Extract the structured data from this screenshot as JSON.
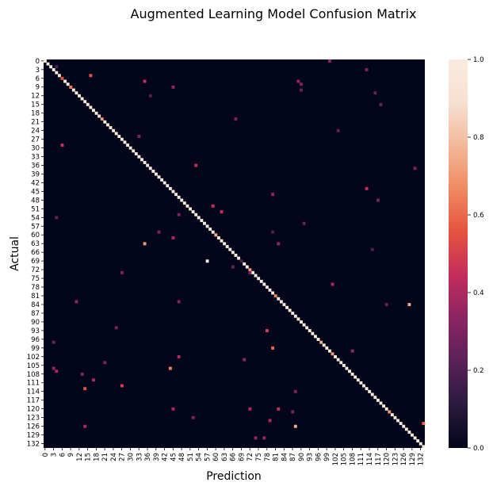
{
  "chart_data": {
    "type": "heatmap",
    "title": "Augmented Learning Model Confusion Matrix",
    "xlabel": "Prediction",
    "ylabel": "Actual",
    "n_classes": 134,
    "tick_step": 3,
    "tick_labels": [
      "0",
      "3",
      "6",
      "9",
      "12",
      "15",
      "18",
      "21",
      "24",
      "27",
      "30",
      "33",
      "36",
      "39",
      "42",
      "45",
      "48",
      "51",
      "54",
      "57",
      "60",
      "63",
      "66",
      "69",
      "72",
      "75",
      "78",
      "81",
      "84",
      "87",
      "90",
      "93",
      "96",
      "99",
      "102",
      "105",
      "108",
      "111",
      "114",
      "117",
      "120",
      "123",
      "126",
      "129",
      "132"
    ],
    "colorbar": {
      "range": [
        0,
        1
      ],
      "ticks": [
        "0.0",
        "0.2",
        "0.4",
        "0.6",
        "0.8",
        "1.0"
      ],
      "colormap": "rocket",
      "stops": [
        "#03051a",
        "#2a1a3e",
        "#5a2157",
        "#8c2463",
        "#c32d5b",
        "#e5533f",
        "#ef8a61",
        "#f3b899",
        "#f7e0d2",
        "#faebdd"
      ]
    },
    "diagonal_dominant": true,
    "diagonal_exceptions": [
      {
        "actual": 6,
        "pred": 6,
        "value": 0.55
      },
      {
        "actual": 9,
        "pred": 9,
        "value": 0.65
      },
      {
        "actual": 20,
        "pred": 20,
        "value": 0.7
      },
      {
        "actual": 60,
        "pred": 60,
        "value": 0.75
      },
      {
        "actual": 69,
        "pred": 69,
        "value": 0.2
      },
      {
        "actual": 72,
        "pred": 72,
        "value": 0.7
      },
      {
        "actual": 81,
        "pred": 81,
        "value": 0.65
      },
      {
        "actual": 97,
        "pred": 97,
        "value": 0.75
      },
      {
        "actual": 101,
        "pred": 101,
        "value": 0.7
      },
      {
        "actual": 121,
        "pred": 121,
        "value": 0.7
      }
    ],
    "off_diagonal": [
      {
        "actual": 0,
        "pred": 100,
        "value": 0.35
      },
      {
        "actual": 2,
        "pred": 4,
        "value": 0.2
      },
      {
        "actual": 3,
        "pred": 113,
        "value": 0.3
      },
      {
        "actual": 5,
        "pred": 16,
        "value": 0.55
      },
      {
        "actual": 7,
        "pred": 35,
        "value": 0.45
      },
      {
        "actual": 7,
        "pred": 89,
        "value": 0.35
      },
      {
        "actual": 8,
        "pred": 90,
        "value": 0.3
      },
      {
        "actual": 9,
        "pred": 45,
        "value": 0.35
      },
      {
        "actual": 10,
        "pred": 90,
        "value": 0.25
      },
      {
        "actual": 11,
        "pred": 116,
        "value": 0.25
      },
      {
        "actual": 12,
        "pred": 37,
        "value": 0.2
      },
      {
        "actual": 15,
        "pred": 118,
        "value": 0.25
      },
      {
        "actual": 20,
        "pred": 67,
        "value": 0.3
      },
      {
        "actual": 24,
        "pred": 103,
        "value": 0.25
      },
      {
        "actual": 26,
        "pred": 33,
        "value": 0.3
      },
      {
        "actual": 29,
        "pred": 6,
        "value": 0.45
      },
      {
        "actual": 36,
        "pred": 53,
        "value": 0.45
      },
      {
        "actual": 37,
        "pred": 130,
        "value": 0.3
      },
      {
        "actual": 44,
        "pred": 113,
        "value": 0.45
      },
      {
        "actual": 46,
        "pred": 80,
        "value": 0.35
      },
      {
        "actual": 48,
        "pred": 117,
        "value": 0.3
      },
      {
        "actual": 50,
        "pred": 59,
        "value": 0.45
      },
      {
        "actual": 52,
        "pred": 62,
        "value": 0.45
      },
      {
        "actual": 53,
        "pred": 47,
        "value": 0.3
      },
      {
        "actual": 54,
        "pred": 4,
        "value": 0.25
      },
      {
        "actual": 56,
        "pred": 91,
        "value": 0.25
      },
      {
        "actual": 59,
        "pred": 40,
        "value": 0.3
      },
      {
        "actual": 59,
        "pred": 80,
        "value": 0.2
      },
      {
        "actual": 61,
        "pred": 45,
        "value": 0.4
      },
      {
        "actual": 63,
        "pred": 35,
        "value": 0.7
      },
      {
        "actual": 63,
        "pred": 82,
        "value": 0.35
      },
      {
        "actual": 65,
        "pred": 115,
        "value": 0.2
      },
      {
        "actual": 69,
        "pred": 57,
        "value": 1.0
      },
      {
        "actual": 71,
        "pred": 66,
        "value": 0.25
      },
      {
        "actual": 73,
        "pred": 27,
        "value": 0.3
      },
      {
        "actual": 73,
        "pred": 72,
        "value": 0.3
      },
      {
        "actual": 77,
        "pred": 101,
        "value": 0.4
      },
      {
        "actual": 83,
        "pred": 11,
        "value": 0.35
      },
      {
        "actual": 83,
        "pred": 47,
        "value": 0.3
      },
      {
        "actual": 84,
        "pred": 128,
        "value": 0.75
      },
      {
        "actual": 84,
        "pred": 120,
        "value": 0.25
      },
      {
        "actual": 92,
        "pred": 25,
        "value": 0.3
      },
      {
        "actual": 93,
        "pred": 78,
        "value": 0.5
      },
      {
        "actual": 97,
        "pred": 3,
        "value": 0.25
      },
      {
        "actual": 99,
        "pred": 80,
        "value": 0.6
      },
      {
        "actual": 100,
        "pred": 108,
        "value": 0.35
      },
      {
        "actual": 102,
        "pred": 47,
        "value": 0.4
      },
      {
        "actual": 103,
        "pred": 70,
        "value": 0.35
      },
      {
        "actual": 104,
        "pred": 21,
        "value": 0.3
      },
      {
        "actual": 106,
        "pred": 44,
        "value": 0.65
      },
      {
        "actual": 106,
        "pred": 3,
        "value": 0.35
      },
      {
        "actual": 107,
        "pred": 4,
        "value": 0.4
      },
      {
        "actual": 108,
        "pred": 13,
        "value": 0.3
      },
      {
        "actual": 110,
        "pred": 17,
        "value": 0.4
      },
      {
        "actual": 112,
        "pred": 27,
        "value": 0.5
      },
      {
        "actual": 113,
        "pred": 14,
        "value": 0.55
      },
      {
        "actual": 114,
        "pred": 88,
        "value": 0.3
      },
      {
        "actual": 120,
        "pred": 45,
        "value": 0.4
      },
      {
        "actual": 120,
        "pred": 72,
        "value": 0.4
      },
      {
        "actual": 120,
        "pred": 82,
        "value": 0.45
      },
      {
        "actual": 121,
        "pred": 87,
        "value": 0.3
      },
      {
        "actual": 123,
        "pred": 52,
        "value": 0.3
      },
      {
        "actual": 124,
        "pred": 79,
        "value": 0.4
      },
      {
        "actual": 125,
        "pred": 133,
        "value": 0.6
      },
      {
        "actual": 126,
        "pred": 14,
        "value": 0.4
      },
      {
        "actual": 126,
        "pred": 88,
        "value": 0.75
      },
      {
        "actual": 130,
        "pred": 74,
        "value": 0.35
      },
      {
        "actual": 130,
        "pred": 77,
        "value": 0.35
      }
    ]
  }
}
